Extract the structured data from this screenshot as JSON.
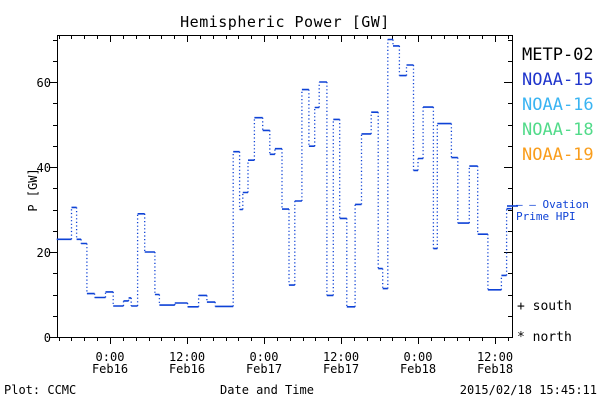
{
  "title": "Hemispheric Power [GW]",
  "axes": {
    "y_label": "P [GW]",
    "x_label": "Date and Time",
    "y_ticks": [
      {
        "p": 0,
        "label": "0"
      },
      {
        "p": 20,
        "label": "20"
      },
      {
        "p": 40,
        "label": "40"
      },
      {
        "p": 60,
        "label": "60"
      }
    ],
    "x_ticks": [
      {
        "h": 0,
        "time": "0:00",
        "date": "Feb16"
      },
      {
        "h": 12,
        "time": "12:00",
        "date": "Feb16"
      },
      {
        "h": 24,
        "time": "0:00",
        "date": "Feb17"
      },
      {
        "h": 36,
        "time": "12:00",
        "date": "Feb17"
      },
      {
        "h": 48,
        "time": "0:00",
        "date": "Feb18"
      },
      {
        "h": 60,
        "time": "12:00",
        "date": "Feb18"
      }
    ]
  },
  "legend": {
    "satellites": [
      {
        "label": "METP-02",
        "color": "#000000"
      },
      {
        "label": "NOAA-15",
        "color": "#2036cc"
      },
      {
        "label": "NOAA-16",
        "color": "#3ab4f2"
      },
      {
        "label": "NOAA-18",
        "color": "#52db8a"
      },
      {
        "label": "NOAA-19",
        "color": "#f99d1c"
      }
    ],
    "ovation_line1": "– – Ovation",
    "ovation_line2": "Prime HPI",
    "ovation_color": "#0e42d6",
    "south_marker": "+ south",
    "north_marker": "* north"
  },
  "footer": {
    "left": "Plot: CCMC",
    "center": "Date and Time",
    "right": "2015/02/18 15:45:11"
  },
  "chart_data": {
    "type": "line",
    "style": "stepped; horizontal segments solid, vertical connectors dotted",
    "series_name": "Ovation Prime HPI",
    "line_color": "#0e42d6",
    "title": "Hemispheric Power [GW]",
    "xlabel": "Date and Time",
    "ylabel": "P [GW]",
    "ylim": [
      0,
      71
    ],
    "x_domain_hours_from_feb16_0000": [
      -8.26,
      62.6
    ],
    "x_major_tick_step_hours": 12,
    "x_minor_tick_step_hours": 2,
    "y_major_tick_step": 20,
    "y_minor_tick_step": 5,
    "grid": false,
    "step_start_hours_from_feb16_0000": [
      -8.3,
      -6.0,
      -5.2,
      -4.5,
      -3.6,
      -2.4,
      -0.7,
      0.5,
      2.1,
      2.9,
      3.3,
      4.3,
      5.4,
      7.0,
      7.7,
      10.1,
      12.1,
      13.8,
      15.1,
      16.4,
      19.2,
      20.2,
      20.7,
      21.5,
      22.5,
      23.8,
      24.9,
      25.7,
      26.8,
      27.9,
      28.8,
      29.9,
      31.0,
      31.9,
      32.6,
      33.8,
      34.8,
      35.8,
      36.9,
      38.2,
      39.2,
      40.7,
      41.8,
      42.5,
      43.3,
      44.1,
      45.1,
      46.2,
      47.3,
      48.0,
      48.8,
      50.4,
      51.0,
      53.2,
      54.2,
      56.0,
      57.3,
      58.9,
      61.0,
      61.8
    ],
    "step_values_gw": [
      23,
      30.5,
      23,
      22,
      10.2,
      9.3,
      10.6,
      7.3,
      8.5,
      9.2,
      7.3,
      29,
      20,
      10,
      7.5,
      8,
      7.1,
      9.8,
      8.2,
      7.2,
      43.6,
      30,
      34,
      41.6,
      51.6,
      48.6,
      43,
      44.3,
      30.1,
      12.2,
      32,
      58.2,
      44.9,
      54,
      60,
      9.8,
      51.2,
      27.9,
      7.1,
      31.2,
      47.8,
      52.9,
      16.1,
      11.4,
      70,
      68.5,
      61.5,
      64,
      39.2,
      42,
      54.1,
      20.8,
      50.2,
      42.2,
      26.8,
      40.2,
      24.2,
      11.1,
      14.5,
      30.2
    ],
    "x_end_hours": 62.6
  }
}
